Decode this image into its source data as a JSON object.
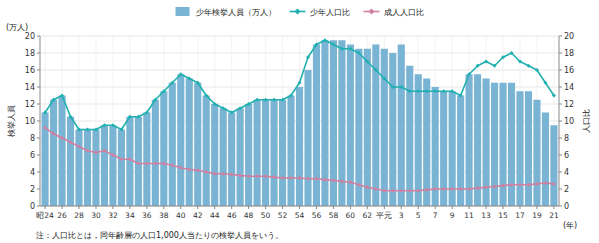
{
  "chart_data": {
    "type": "bar",
    "categories": [
      "昭24",
      null,
      "26",
      null,
      "28",
      null,
      "30",
      null,
      "32",
      null,
      "34",
      null,
      "36",
      null,
      "38",
      null,
      "40",
      null,
      "42",
      null,
      "44",
      null,
      "46",
      null,
      "48",
      null,
      "50",
      null,
      "52",
      null,
      "54",
      null,
      "56",
      null,
      "58",
      null,
      "60",
      null,
      "62",
      null,
      "平元",
      null,
      "3",
      null,
      "5",
      null,
      "7",
      null,
      "9",
      null,
      "11",
      null,
      "13",
      null,
      "15",
      null,
      "17",
      null,
      "19",
      null,
      "21"
    ],
    "series": [
      {
        "name": "少年検挙人員（万人）",
        "type": "bar",
        "color": "#7ab4d4",
        "values": [
          11.0,
          12.5,
          13.0,
          10.5,
          9.0,
          9.0,
          9.0,
          9.5,
          9.5,
          9.0,
          10.5,
          10.5,
          11.0,
          12.5,
          13.5,
          14.5,
          15.5,
          15.0,
          14.5,
          13.0,
          12.0,
          11.5,
          11.0,
          11.5,
          12.0,
          12.5,
          12.5,
          12.5,
          12.5,
          13.0,
          14.0,
          16.0,
          19.0,
          19.5,
          19.5,
          19.5,
          19.0,
          18.5,
          18.5,
          19.0,
          18.5,
          18.0,
          19.0,
          16.5,
          15.5,
          15.0,
          14.0,
          13.5,
          13.5,
          13.0,
          15.5,
          15.5,
          15.0,
          14.5,
          14.5,
          14.5,
          13.5,
          13.5,
          12.5,
          11.0,
          9.5
        ]
      },
      {
        "name": "少年人口比",
        "type": "line",
        "color": "#20b0b0",
        "marker": "diamond",
        "axis": "y2",
        "values": [
          11.0,
          12.5,
          13.0,
          10.5,
          9.0,
          9.0,
          9.0,
          9.5,
          9.5,
          9.0,
          10.5,
          10.5,
          11.0,
          12.5,
          13.5,
          14.5,
          15.5,
          15.0,
          14.5,
          13.0,
          12.0,
          11.5,
          11.0,
          11.5,
          12.0,
          12.5,
          12.5,
          12.5,
          12.5,
          13.0,
          14.5,
          17.5,
          19.0,
          19.5,
          19.0,
          18.5,
          18.5,
          18.0,
          17.0,
          16.0,
          15.0,
          14.0,
          14.0,
          13.5,
          13.5,
          13.5,
          13.5,
          13.5,
          13.5,
          13.0,
          15.5,
          16.5,
          17.0,
          16.5,
          17.5,
          18.0,
          17.0,
          16.5,
          16.0,
          14.5,
          13.0
        ]
      },
      {
        "name": "成人人口比",
        "type": "line",
        "color": "#d080a0",
        "marker": "diamond",
        "axis": "y2",
        "values": [
          9.2,
          8.5,
          8.0,
          7.5,
          7.0,
          6.5,
          6.3,
          6.5,
          6.0,
          5.5,
          5.5,
          5.0,
          5.0,
          5.0,
          5.0,
          4.8,
          4.5,
          4.3,
          4.2,
          4.0,
          3.8,
          3.8,
          3.7,
          3.6,
          3.5,
          3.5,
          3.5,
          3.4,
          3.3,
          3.3,
          3.3,
          3.2,
          3.2,
          3.1,
          3.0,
          2.9,
          2.8,
          2.5,
          2.2,
          2.0,
          1.8,
          1.8,
          1.8,
          1.8,
          1.8,
          1.9,
          2.0,
          2.0,
          2.0,
          2.0,
          2.0,
          2.1,
          2.2,
          2.3,
          2.4,
          2.5,
          2.5,
          2.5,
          2.6,
          2.7,
          2.6
        ]
      }
    ],
    "x_label": "(年)",
    "y_label": "検挙人員",
    "y2_label": "人口比",
    "annotations": [
      "(万人)",
      "注：人口比とは，同年齢層の人口1,000人当たりの検挙人員をいう。"
    ],
    "ylim": [
      0,
      20
    ],
    "yticks": [
      0,
      2,
      4,
      6,
      8,
      10,
      12,
      14,
      16,
      18,
      20
    ],
    "y2lim": [
      0,
      20
    ],
    "y2ticks": [
      0,
      2,
      4,
      6,
      8,
      10,
      12,
      14,
      16,
      18,
      20
    ],
    "grid": true,
    "legend": "top"
  }
}
